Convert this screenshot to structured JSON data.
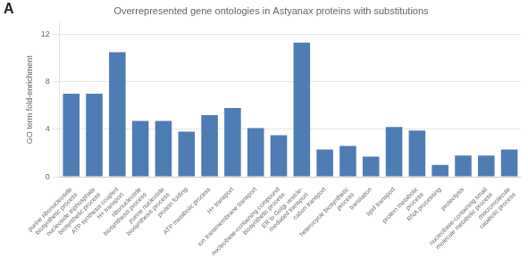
{
  "chart_data": {
    "type": "bar",
    "title": "Overrepresented gene ontologies in Astyanax proteins with substitutions",
    "annotations": [
      "A"
    ],
    "ylabel": "GO term fold-enrichment",
    "color": "#4e7db5",
    "ylim": [
      0,
      13
    ],
    "yticks": [
      0,
      4,
      8,
      12
    ],
    "grid": true,
    "categories": [
      "purine ribonucleoside\nbiosynthetic process",
      "nucleoside triphosphate\nbiosynthetic process",
      "ATP synthesis coupled\nH+ transport",
      "ribonucleotide\nbiosynthesis process",
      "purine nucleotide\nbiosynthesis process",
      "protein folding",
      "ATP metabolic process",
      "H+ transport",
      "ion transmembrane transport",
      "nucleobase-containing compound\nbiosynthetic process",
      "ER to Golgi vesicle-\nmediated transport",
      "cation transport",
      "heterocycle biosynthetic\nprocess",
      "translation",
      "lipid transport",
      "protein metabolic\nprocess",
      "RNA processing",
      "proteolysis",
      "nucleobase-containing small\nmolecule metabolic process",
      "macromolecule\ncatabolic process"
    ],
    "values": [
      7.0,
      7.0,
      10.5,
      4.7,
      4.7,
      3.8,
      5.2,
      5.8,
      4.1,
      3.5,
      11.3,
      2.3,
      2.6,
      1.7,
      4.2,
      3.9,
      1.0,
      1.8,
      1.8,
      2.3
    ]
  }
}
